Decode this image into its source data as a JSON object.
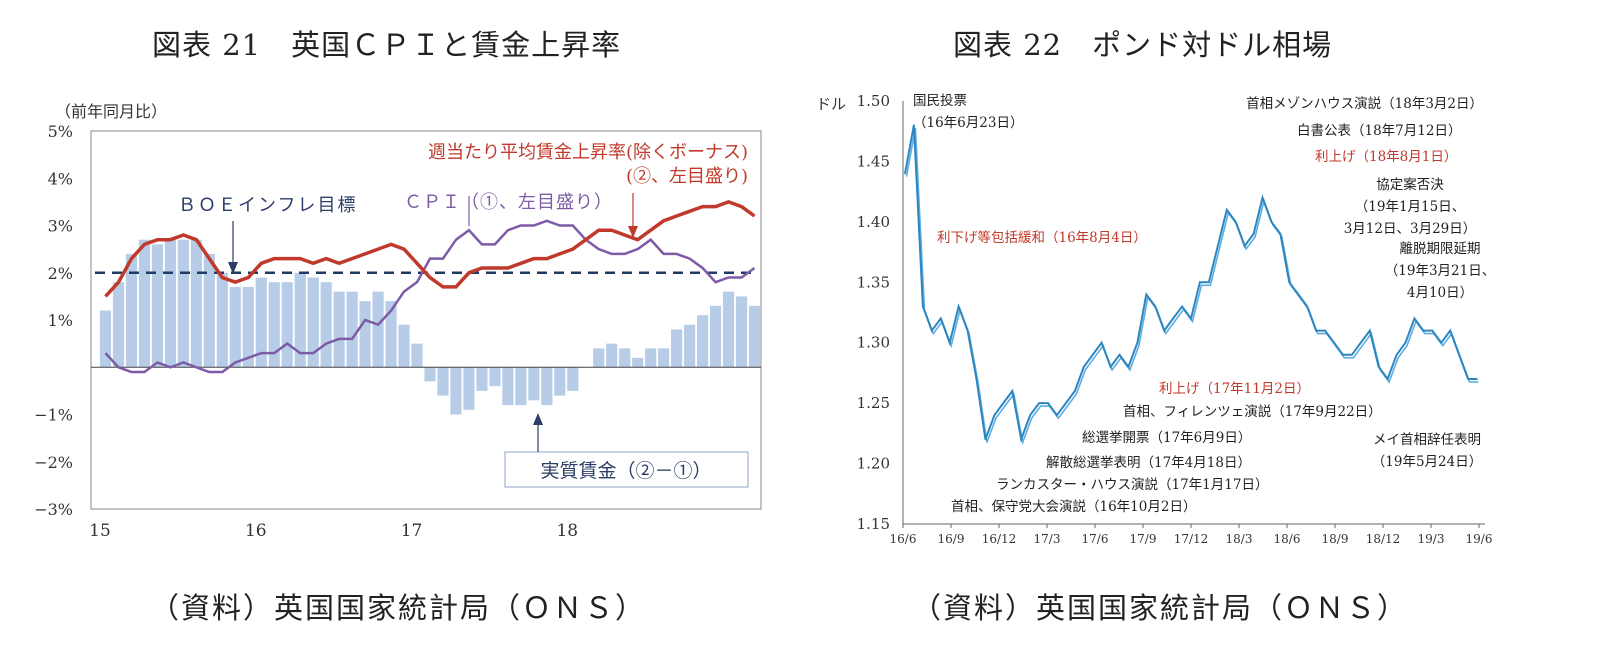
{
  "figure21": {
    "title": "図表 21　英国ＣＰＩと賃金上昇率",
    "source": "（資料）英国国家統計局（ＯＮＳ）",
    "unit_label": "（前年同月比）",
    "annotations": {
      "boe": "ＢＯＥインフレ目標",
      "cpi": "ＣＰＩ（①、左目盛り）",
      "wage_line1": "週当たり平均賃金上昇率(除くボーナス)",
      "wage_line2": "(②、左目盛り)",
      "real_wage": "実質賃金（②－①）"
    },
    "colors": {
      "wage": "#c0392b",
      "cpi": "#7d5ba6",
      "bars": "#b7cce6",
      "target": "#1f3a64",
      "anno": "#2c3e66",
      "wage_anno": "#c0392b",
      "cpi_anno": "#7d5ba6"
    }
  },
  "figure22": {
    "title": "図表 22　ポンド対ドル相場",
    "source": "（資料）英国国家統計局（ＯＮＳ）",
    "unit_label": "ドル",
    "annotations": [
      {
        "lines": [
          "国民投票",
          "（16年6月23日）"
        ],
        "color": "#222"
      },
      {
        "lines": [
          "利下げ等包括緩和（16年8月4日）"
        ],
        "color": "#c0392b"
      },
      {
        "lines": [
          "首相メゾンハウス演説（18年3月2日）"
        ],
        "color": "#222"
      },
      {
        "lines": [
          "白書公表（18年7月12日）"
        ],
        "color": "#222"
      },
      {
        "lines": [
          "利上げ（18年8月1日）"
        ],
        "color": "#c0392b"
      },
      {
        "lines": [
          "協定案否決",
          "（19年1月15日、",
          "3月12日、3月29日）"
        ],
        "color": "#222"
      },
      {
        "lines": [
          "離脱期限延期",
          "（19年3月21日、",
          "4月10日）"
        ],
        "color": "#222"
      },
      {
        "lines": [
          "利上げ（17年11月2日）"
        ],
        "color": "#c0392b"
      },
      {
        "lines": [
          "首相、フィレンツェ演説（17年9月22日）"
        ],
        "color": "#222"
      },
      {
        "lines": [
          "総選挙開票（17年6月9日）"
        ],
        "color": "#222"
      },
      {
        "lines": [
          "解散総選挙表明（17年4月18日）"
        ],
        "color": "#222"
      },
      {
        "lines": [
          "ランカスター・ハウス演説（17年1月17日）"
        ],
        "color": "#222"
      },
      {
        "lines": [
          "首相、保守党大会演説（16年10月2日）"
        ],
        "color": "#222"
      },
      {
        "lines": [
          "メイ首相辞任表明",
          "（19年5月24日）"
        ],
        "color": "#222"
      }
    ],
    "colors": {
      "line": "#2e86c1",
      "line_light": "#5dade2"
    }
  },
  "chart_data": [
    {
      "type": "bar+line",
      "title": "図表 21　英国ＣＰＩと賃金上昇率",
      "ylabel": "（前年同月比）",
      "ylim": [
        -3,
        5
      ],
      "yticks": [
        -3,
        -2,
        -1,
        1,
        2,
        3,
        4,
        5
      ],
      "ytick_labels": [
        "−3%",
        "−2%",
        "−1%",
        "1%",
        "2%",
        "3%",
        "4%",
        "5%"
      ],
      "xticks": [
        {
          "index": 0,
          "label": "15"
        },
        {
          "index": 12,
          "label": "16"
        },
        {
          "index": 24,
          "label": "17"
        },
        {
          "index": 36,
          "label": "18"
        }
      ],
      "target_line": 2.0,
      "series": [
        {
          "name": "週当たり平均賃金上昇率(除くボーナス)",
          "kind": "line",
          "values": [
            1.5,
            1.8,
            2.3,
            2.6,
            2.7,
            2.7,
            2.8,
            2.7,
            2.3,
            1.9,
            1.8,
            1.9,
            2.2,
            2.3,
            2.3,
            2.3,
            2.2,
            2.3,
            2.2,
            2.3,
            2.4,
            2.5,
            2.6,
            2.5,
            2.2,
            1.9,
            1.7,
            1.7,
            2.0,
            2.1,
            2.1,
            2.1,
            2.2,
            2.3,
            2.3,
            2.4,
            2.5,
            2.7,
            2.9,
            2.9,
            2.8,
            2.7,
            2.9,
            3.1,
            3.2,
            3.3,
            3.4,
            3.4,
            3.5,
            3.4,
            3.2
          ]
        },
        {
          "name": "ＣＰＩ（①、左目盛り）",
          "kind": "line",
          "values": [
            0.3,
            0.0,
            -0.1,
            -0.1,
            0.1,
            0.0,
            0.1,
            0.0,
            -0.1,
            -0.1,
            0.1,
            0.2,
            0.3,
            0.3,
            0.5,
            0.3,
            0.3,
            0.5,
            0.6,
            0.6,
            1.0,
            0.9,
            1.2,
            1.6,
            1.8,
            2.3,
            2.3,
            2.7,
            2.9,
            2.6,
            2.6,
            2.9,
            3.0,
            3.0,
            3.1,
            3.0,
            3.0,
            2.7,
            2.5,
            2.4,
            2.4,
            2.5,
            2.7,
            2.4,
            2.4,
            2.3,
            2.1,
            1.8,
            1.9,
            1.9,
            2.1
          ]
        },
        {
          "name": "実質賃金（②－①）",
          "kind": "bar",
          "values": [
            1.2,
            1.8,
            2.4,
            2.7,
            2.6,
            2.7,
            2.7,
            2.7,
            2.4,
            2.0,
            1.7,
            1.7,
            1.9,
            1.8,
            1.8,
            2.0,
            1.9,
            1.8,
            1.6,
            1.6,
            1.4,
            1.6,
            1.4,
            0.9,
            0.5,
            -0.3,
            -0.6,
            -1.0,
            -0.9,
            -0.5,
            -0.4,
            -0.8,
            -0.8,
            -0.7,
            -0.8,
            -0.6,
            -0.5,
            0.0,
            0.4,
            0.5,
            0.4,
            0.2,
            0.4,
            0.4,
            0.8,
            0.9,
            1.1,
            1.3,
            1.6,
            1.5,
            1.3
          ]
        }
      ]
    },
    {
      "type": "line",
      "title": "図表 22　ポンド対ドル相場",
      "ylabel": "ドル",
      "ylim": [
        1.15,
        1.5
      ],
      "yticks": [
        1.15,
        1.2,
        1.25,
        1.3,
        1.35,
        1.4,
        1.45,
        1.5
      ],
      "ytick_labels": [
        "1.15",
        "1.20",
        "1.25",
        "1.30",
        "1.35",
        "1.40",
        "1.45",
        "1.50"
      ],
      "xtick_labels": [
        "16/6",
        "16/9",
        "16/12",
        "17/3",
        "17/6",
        "17/9",
        "17/12",
        "18/3",
        "18/6",
        "18/9",
        "18/12",
        "19/3",
        "19/6"
      ],
      "x_note": "series points at approximately semi-monthly intervals from 16/6 to 19/6",
      "series": [
        {
          "name": "GBP/USD",
          "values": [
            1.44,
            1.48,
            1.33,
            1.31,
            1.32,
            1.3,
            1.33,
            1.31,
            1.27,
            1.22,
            1.24,
            1.25,
            1.26,
            1.22,
            1.24,
            1.25,
            1.25,
            1.24,
            1.25,
            1.26,
            1.28,
            1.29,
            1.3,
            1.28,
            1.29,
            1.28,
            1.3,
            1.34,
            1.33,
            1.31,
            1.32,
            1.33,
            1.32,
            1.35,
            1.35,
            1.38,
            1.41,
            1.4,
            1.38,
            1.39,
            1.42,
            1.4,
            1.39,
            1.35,
            1.34,
            1.33,
            1.31,
            1.31,
            1.3,
            1.29,
            1.29,
            1.3,
            1.31,
            1.28,
            1.27,
            1.29,
            1.3,
            1.32,
            1.31,
            1.31,
            1.3,
            1.31,
            1.29,
            1.27,
            1.27
          ]
        }
      ]
    }
  ]
}
